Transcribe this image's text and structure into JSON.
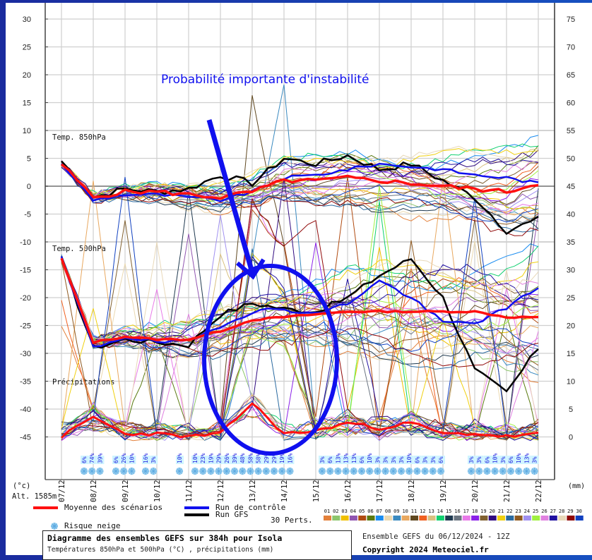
{
  "annotation": {
    "text": "Probabilité importante d'instabilité",
    "color": "#1010ee"
  },
  "panels": {
    "t850_label": "Temp. 850hPa",
    "t500_label": "Temp. 500hPa",
    "precip_label": "Précipitations"
  },
  "axes": {
    "left_unit": "(°c)",
    "right_unit": "(mm)",
    "altitude": "Alt. 1585m",
    "left_ticks": [
      "30",
      "25",
      "20",
      "15",
      "10",
      "5",
      "0",
      "-5",
      "-10",
      "-15",
      "-20",
      "-25",
      "-30",
      "-35",
      "-40",
      "-45"
    ],
    "right_ticks": [
      "75",
      "70",
      "65",
      "60",
      "55",
      "50",
      "45",
      "40",
      "35",
      "30",
      "25",
      "20",
      "15",
      "10",
      "5",
      "0"
    ],
    "dates": [
      "07/12",
      "08/12",
      "09/12",
      "10/12",
      "11/12",
      "12/12",
      "13/12",
      "14/12",
      "15/12",
      "16/12",
      "17/12",
      "18/12",
      "19/12",
      "20/12",
      "21/12",
      "22/12"
    ]
  },
  "legend": {
    "mean": "Moyenne des scénarios",
    "control": "Run de contrôle",
    "gfs": "Run GFS",
    "perts": "30 Perts.",
    "snow": "Risque neige",
    "pert_numbers": [
      "01",
      "02",
      "03",
      "04",
      "05",
      "06",
      "07",
      "08",
      "09",
      "10",
      "11",
      "12",
      "13",
      "14",
      "15",
      "16",
      "17",
      "18",
      "19",
      "20",
      "21",
      "22",
      "23",
      "24",
      "25",
      "26",
      "27",
      "28",
      "29",
      "30"
    ],
    "pert_colors": [
      "#e3803a",
      "#8cc56c",
      "#f0c000",
      "#9054b0",
      "#b04a10",
      "#5a7a10",
      "#1a8cf0",
      "#ead8b0",
      "#3a8ac0",
      "#e8a860",
      "#604820",
      "#f06020",
      "#d8c080",
      "#10d070",
      "#203a50",
      "#6a7480",
      "#e87ae8",
      "#8a20e8",
      "#806030",
      "#300a80",
      "#f0d010",
      "#2a6aa0",
      "#905a20",
      "#a090f0",
      "#a0f040",
      "#e080e0",
      "#2010a0",
      "#e8d8b8",
      "#900808",
      "#1040c0"
    ]
  },
  "snow_risk": {
    "group1": [
      "6%",
      "74%",
      "39%"
    ],
    "group2": [
      "6%",
      "26%",
      "10%"
    ],
    "group3": [
      "16%",
      "3%"
    ],
    "group4": [
      "10%"
    ],
    "group5": [
      "10%",
      "23%",
      "19%",
      "29%",
      "26%",
      "39%",
      "48%",
      "58%",
      "58%",
      "29%",
      "29%",
      "19%",
      "16%"
    ],
    "group6": [
      "3%",
      "6%",
      "13%",
      "13%",
      "13%",
      "6%",
      "10%",
      "3%",
      "3%",
      "3%",
      "3%",
      "10%",
      "6%",
      "3%",
      "3%",
      "6%"
    ],
    "group7": [
      "3%",
      "3%",
      "6%",
      "10%",
      "3%",
      "6%",
      "10%",
      "13%",
      "3%"
    ]
  },
  "footer": {
    "title": "Diagramme des ensembles GEFS sur 384h pour Isola",
    "subtitle": "Températures 850hPa et 500hPa (°C) , précipitations (mm)",
    "run_info": "Ensemble GEFS du 06/12/2024 - 12Z",
    "copyright": "Copyright 2024 Meteociel.fr"
  },
  "colors": {
    "mean": "#ff1010",
    "control": "#1010ee",
    "gfs": "#000000",
    "annotation_shape": "#1010ee",
    "frame_bg_left": "#1a2b9e",
    "frame_bg_right": "#1750c0"
  },
  "chart_data": {
    "type": "line",
    "title": "Diagramme des ensembles GEFS sur 384h pour Isola",
    "subtitle": "Températures 850hPa et 500hPa (°C) , précipitations (mm)",
    "xlabel": "Date",
    "ylabel_left": "(°c)",
    "ylabel_right": "(mm)",
    "ylim_left": [
      -45,
      30
    ],
    "ylim_right": [
      0,
      75
    ],
    "grid": true,
    "x": [
      "07/12",
      "08/12",
      "09/12",
      "10/12",
      "11/12",
      "12/12",
      "13/12",
      "14/12",
      "15/12",
      "16/12",
      "17/12",
      "18/12",
      "19/12",
      "20/12",
      "21/12",
      "22/12"
    ],
    "series": [
      {
        "name": "Temp. 850hPa - Moyenne des scénarios",
        "axis": "left",
        "values": [
          4.0,
          -2.0,
          -1.0,
          -1.0,
          -1.5,
          -2.0,
          -1.0,
          1.0,
          1.0,
          1.5,
          1.0,
          0.5,
          0.0,
          -0.5,
          -1.0,
          0.5
        ]
      },
      {
        "name": "Temp. 850hPa - Run GFS",
        "axis": "left",
        "values": [
          4.5,
          -2.0,
          -0.5,
          -1.0,
          -0.5,
          2.0,
          0.5,
          5.0,
          4.0,
          5.5,
          3.0,
          4.0,
          1.0,
          -2.0,
          -8.0,
          -6.0
        ]
      },
      {
        "name": "Temp. 850hPa - Run de contrôle",
        "axis": "left",
        "values": [
          4.0,
          -2.5,
          -1.5,
          -1.5,
          -2.0,
          -2.5,
          -1.0,
          1.5,
          2.0,
          3.0,
          4.0,
          3.5,
          3.0,
          2.0,
          1.5,
          0.5
        ]
      },
      {
        "name": "Temp. 500hPa - Moyenne des scénarios",
        "axis": "left",
        "values": [
          -13.0,
          -28.0,
          -27.0,
          -27.5,
          -27.5,
          -26.0,
          -24.0,
          -23.5,
          -23.0,
          -22.5,
          -22.5,
          -22.5,
          -22.5,
          -22.5,
          -23.5,
          -23.5
        ]
      },
      {
        "name": "Temp. 500hPa - Run GFS",
        "axis": "left",
        "values": [
          -13.0,
          -29.0,
          -27.5,
          -28.0,
          -28.5,
          -23.0,
          -21.0,
          -22.0,
          -22.5,
          -20.0,
          -16.0,
          -13.0,
          -20.0,
          -33.0,
          -37.0,
          -29.0
        ]
      },
      {
        "name": "Temp. 500hPa - Run de contrôle",
        "axis": "left",
        "values": [
          -13.0,
          -29.0,
          -27.0,
          -28.0,
          -28.0,
          -25.0,
          -22.5,
          -22.0,
          -23.0,
          -21.0,
          -17.0,
          -20.0,
          -24.5,
          -24.5,
          -22.0,
          -18.0
        ]
      },
      {
        "name": "Précipitations - Moyenne des scénarios",
        "axis": "right",
        "values": [
          0.0,
          3.5,
          0.5,
          0.5,
          0.0,
          0.5,
          6.0,
          0.5,
          1.0,
          2.5,
          1.5,
          2.5,
          0.5,
          0.5,
          0.0,
          0.5
        ]
      }
    ],
    "annotations": [
      {
        "text": "Probabilité importante d'instabilité",
        "type": "arrow+ellipse",
        "target_dates": [
          "12/12",
          "14/12"
        ]
      }
    ]
  }
}
